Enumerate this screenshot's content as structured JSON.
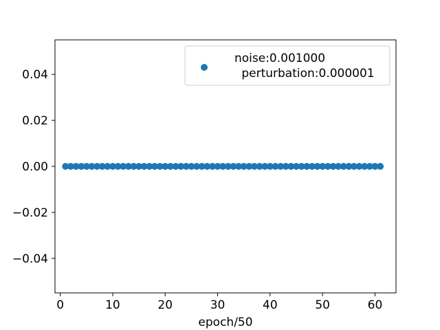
{
  "chart_data": {
    "type": "scatter",
    "title": "",
    "xlabel": "epoch/50",
    "ylabel": "",
    "xlim": [
      -1.0,
      64.0
    ],
    "ylim": [
      -0.055,
      0.055
    ],
    "xticks": [
      0,
      10,
      20,
      30,
      40,
      50,
      60
    ],
    "xtick_labels": [
      "0",
      "10",
      "20",
      "30",
      "40",
      "50",
      "60"
    ],
    "yticks": [
      -0.04,
      -0.02,
      0.0,
      0.02,
      0.04
    ],
    "ytick_labels": [
      "−0.04",
      "−0.02",
      "0.00",
      "0.02",
      "0.04"
    ],
    "grid": false,
    "legend_position": "top-right",
    "series": [
      {
        "name": "noise:0.001000\nperturbation:0.000001",
        "label_lines": [
          "noise:0.001000",
          "perturbation:0.000001"
        ],
        "color": "#1f77b4",
        "x": [
          1,
          2,
          3,
          4,
          5,
          6,
          7,
          8,
          9,
          10,
          11,
          12,
          13,
          14,
          15,
          16,
          17,
          18,
          19,
          20,
          21,
          22,
          23,
          24,
          25,
          26,
          27,
          28,
          29,
          30,
          31,
          32,
          33,
          34,
          35,
          36,
          37,
          38,
          39,
          40,
          41,
          42,
          43,
          44,
          45,
          46,
          47,
          48,
          49,
          50,
          51,
          52,
          53,
          54,
          55,
          56,
          57,
          58,
          59,
          60,
          61
        ],
        "y": [
          0,
          0,
          0,
          0,
          0,
          0,
          0,
          0,
          0,
          0,
          0,
          0,
          0,
          0,
          0,
          0,
          0,
          0,
          0,
          0,
          0,
          0,
          0,
          0,
          0,
          0,
          0,
          0,
          0,
          0,
          0,
          0,
          0,
          0,
          0,
          0,
          0,
          0,
          0,
          0,
          0,
          0,
          0,
          0,
          0,
          0,
          0,
          0,
          0,
          0,
          0,
          0,
          0,
          0,
          0,
          0,
          0,
          0,
          0,
          0,
          0
        ]
      }
    ]
  }
}
